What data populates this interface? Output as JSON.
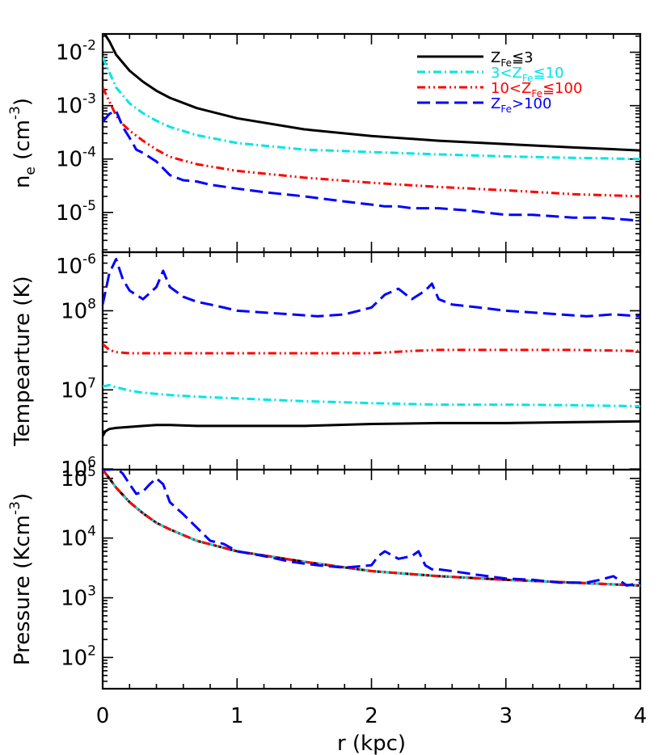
{
  "chart_data": [
    {
      "type": "line",
      "ylabel": "n",
      "ylabel_sub": "e",
      "ylabel_unit": "(cm",
      "ylabel_sup": "-3",
      "ylabel_close": ")",
      "yscale": "log",
      "xlim": [
        0,
        4
      ],
      "ylim": [
        1.8e-06,
        0.022
      ],
      "yticks": [
        {
          "value": 1e-06,
          "base": "10",
          "exp": "-6"
        },
        {
          "value": 1e-05,
          "base": "10",
          "exp": "-5"
        },
        {
          "value": 0.0001,
          "base": "10",
          "exp": "-4"
        },
        {
          "value": 0.001,
          "base": "10",
          "exp": "-3"
        },
        {
          "value": 0.01,
          "base": "10",
          "exp": "-2"
        }
      ],
      "legend_position": "top-right",
      "legend": [
        {
          "pre": "Z",
          "sub": "Fe",
          "post": "≦3",
          "color": "#000000",
          "dash": "solid"
        },
        {
          "pre": "3<Z",
          "sub": "Fe",
          "post": "≦10",
          "color": "#00e5e5",
          "dash": "dashdot"
        },
        {
          "pre": "10<Z",
          "sub": "Fe",
          "post": "≦100",
          "color": "#ff0000",
          "dash": "dashdotdot"
        },
        {
          "pre": "Z",
          "sub": "Fe",
          "post": ">100",
          "color": "#0000ff",
          "dash": "dashed"
        }
      ],
      "series": [
        {
          "color": "#000000",
          "dash": "solid",
          "x": [
            0.0,
            0.05,
            0.1,
            0.2,
            0.3,
            0.4,
            0.5,
            0.7,
            1.0,
            1.5,
            2.0,
            2.5,
            3.0,
            3.5,
            4.0
          ],
          "y": [
            0.025,
            0.016,
            0.009,
            0.0045,
            0.0028,
            0.0019,
            0.0014,
            0.0009,
            0.00058,
            0.00036,
            0.00027,
            0.00022,
            0.00019,
            0.000165,
            0.000145
          ]
        },
        {
          "color": "#00e5e5",
          "dash": "dashdot",
          "x": [
            0.0,
            0.05,
            0.1,
            0.2,
            0.3,
            0.4,
            0.5,
            0.7,
            1.0,
            1.5,
            2.0,
            2.5,
            3.0,
            3.5,
            4.0
          ],
          "y": [
            0.008,
            0.0042,
            0.0022,
            0.0011,
            0.00072,
            0.00052,
            0.0004,
            0.00028,
            0.0002,
            0.00015,
            0.000135,
            0.000122,
            0.000112,
            0.000105,
            0.0001
          ]
        },
        {
          "color": "#ff0000",
          "dash": "dashdotdot",
          "x": [
            0.0,
            0.05,
            0.1,
            0.15,
            0.2,
            0.3,
            0.4,
            0.5,
            0.7,
            1.0,
            1.5,
            2.0,
            2.5,
            3.0,
            3.5,
            4.0
          ],
          "y": [
            0.0022,
            0.0012,
            0.00065,
            0.00045,
            0.00034,
            0.00022,
            0.00015,
            0.00011,
            8e-05,
            6e-05,
            4.5e-05,
            3.6e-05,
            3e-05,
            2.6e-05,
            2.2e-05,
            2e-05
          ]
        },
        {
          "color": "#0000ff",
          "dash": "dashed",
          "x": [
            0.0,
            0.05,
            0.1,
            0.15,
            0.2,
            0.25,
            0.3,
            0.4,
            0.5,
            0.6,
            0.7,
            0.8,
            1.0,
            1.2,
            1.5,
            1.8,
            2.0,
            2.1,
            2.2,
            2.3,
            2.4,
            2.5,
            2.7,
            3.0,
            3.2,
            3.5,
            3.7,
            4.0
          ],
          "y": [
            0.0005,
            0.0007,
            0.0008,
            0.0004,
            0.00025,
            0.00015,
            0.00013,
            9e-05,
            5e-05,
            4e-05,
            3.8e-05,
            3.3e-05,
            2.8e-05,
            2.4e-05,
            2e-05,
            1.6e-05,
            1.4e-05,
            1.3e-05,
            1.3e-05,
            1.2e-05,
            1.2e-05,
            1.2e-05,
            1.1e-05,
            9e-06,
            9e-06,
            8e-06,
            8e-06,
            7e-06
          ]
        }
      ]
    },
    {
      "type": "line",
      "ylabel": "Tempearture (K)",
      "yscale": "log",
      "xlim": [
        0,
        4
      ],
      "ylim": [
        980000,
        550000000
      ],
      "yticks": [
        {
          "value": 1000000.0,
          "base": "10",
          "exp": "6"
        },
        {
          "value": 10000000.0,
          "base": "10",
          "exp": "7"
        },
        {
          "value": 100000000.0,
          "base": "10",
          "exp": "8"
        }
      ],
      "series": [
        {
          "color": "#000000",
          "dash": "solid",
          "x": [
            0.0,
            0.02,
            0.05,
            0.1,
            0.2,
            0.3,
            0.4,
            0.5,
            0.7,
            1.0,
            1.5,
            2.0,
            2.5,
            3.0,
            3.5,
            4.0
          ],
          "y": [
            2600000,
            3000000,
            3200000,
            3300000,
            3400000,
            3500000,
            3600000,
            3600000,
            3500000,
            3500000,
            3500000,
            3700000,
            3800000,
            3800000,
            3900000,
            4000000
          ]
        },
        {
          "color": "#00e5e5",
          "dash": "dashdot",
          "x": [
            0.0,
            0.05,
            0.1,
            0.2,
            0.3,
            0.5,
            0.7,
            1.0,
            1.5,
            2.0,
            2.5,
            3.0,
            3.5,
            4.0
          ],
          "y": [
            11000000,
            11500000,
            10800000,
            9800000,
            9200000,
            8600000,
            8200000,
            7800000,
            7200000,
            6800000,
            6500000,
            6500000,
            6400000,
            6200000
          ]
        },
        {
          "color": "#ff0000",
          "dash": "dashdotdot",
          "x": [
            0.0,
            0.05,
            0.1,
            0.2,
            0.3,
            0.5,
            0.7,
            1.0,
            1.5,
            2.0,
            2.3,
            2.5,
            3.0,
            3.5,
            4.0
          ],
          "y": [
            38000000,
            32000000,
            30000000,
            29000000,
            29000000,
            29000000,
            29000000,
            29000000,
            29000000,
            29000000,
            31000000,
            32000000,
            32000000,
            32000000,
            31000000
          ]
        },
        {
          "color": "#0000ff",
          "dash": "dashed",
          "x": [
            0.0,
            0.05,
            0.1,
            0.15,
            0.2,
            0.3,
            0.4,
            0.45,
            0.5,
            0.6,
            0.7,
            0.8,
            0.9,
            1.0,
            1.2,
            1.4,
            1.6,
            1.8,
            2.0,
            2.1,
            2.2,
            2.3,
            2.4,
            2.45,
            2.5,
            2.6,
            2.8,
            3.0,
            3.2,
            3.4,
            3.6,
            3.8,
            4.0
          ],
          "y": [
            120000000,
            300000000,
            450000000,
            250000000,
            180000000,
            140000000,
            200000000,
            320000000,
            200000000,
            150000000,
            130000000,
            120000000,
            110000000,
            100000000,
            95000000,
            90000000,
            85000000,
            90000000,
            110000000,
            160000000,
            190000000,
            140000000,
            180000000,
            220000000,
            140000000,
            120000000,
            110000000,
            100000000,
            95000000,
            90000000,
            85000000,
            90000000,
            85000000
          ]
        }
      ]
    },
    {
      "type": "line",
      "ylabel": "Pressure (Kcm",
      "ylabel_sup": "-3",
      "ylabel_close": ")",
      "xlabel": "r (kpc)",
      "yscale": "log",
      "xlim": [
        0,
        4
      ],
      "ylim": [
        30,
        140000
      ],
      "xticks": [
        "0",
        "1",
        "2",
        "3",
        "4"
      ],
      "yticks": [
        {
          "value": 100,
          "base": "10",
          "exp": "2"
        },
        {
          "value": 1000,
          "base": "10",
          "exp": "3"
        },
        {
          "value": 10000,
          "base": "10",
          "exp": "4"
        },
        {
          "value": 100000,
          "base": "10",
          "exp": "5"
        }
      ],
      "series": [
        {
          "color": "#000000",
          "dash": "solid",
          "x": [
            0.0,
            0.05,
            0.1,
            0.2,
            0.3,
            0.4,
            0.5,
            0.7,
            1.0,
            1.5,
            2.0,
            2.5,
            3.0,
            3.5,
            4.0
          ],
          "y": [
            140000,
            100000,
            70000,
            40000,
            26000,
            18000,
            14000,
            9000,
            6000,
            4000,
            2800,
            2300,
            2000,
            1800,
            1600
          ]
        },
        {
          "color": "#00e5e5",
          "dash": "dashdot",
          "x": [
            0.0,
            0.05,
            0.1,
            0.2,
            0.3,
            0.4,
            0.5,
            0.7,
            1.0,
            1.5,
            2.0,
            2.5,
            3.0,
            3.5,
            4.0
          ],
          "y": [
            140000,
            100000,
            70000,
            40000,
            26000,
            18000,
            14000,
            9000,
            6000,
            4000,
            2800,
            2300,
            2000,
            1800,
            1600
          ]
        },
        {
          "color": "#ff0000",
          "dash": "dashdotdot",
          "x": [
            0.0,
            0.05,
            0.1,
            0.2,
            0.3,
            0.4,
            0.5,
            0.7,
            1.0,
            1.5,
            2.0,
            2.5,
            3.0,
            3.5,
            4.0
          ],
          "y": [
            140000,
            100000,
            70000,
            40000,
            26000,
            18000,
            14000,
            9000,
            6000,
            4000,
            2800,
            2300,
            2000,
            1800,
            1600
          ]
        },
        {
          "color": "#0000ff",
          "dash": "dashed",
          "x": [
            0.0,
            0.05,
            0.1,
            0.15,
            0.2,
            0.25,
            0.3,
            0.35,
            0.4,
            0.45,
            0.5,
            0.6,
            0.7,
            0.8,
            0.9,
            1.0,
            1.2,
            1.4,
            1.6,
            1.8,
            2.0,
            2.05,
            2.1,
            2.2,
            2.3,
            2.35,
            2.4,
            2.45,
            2.5,
            2.6,
            2.8,
            3.0,
            3.2,
            3.4,
            3.6,
            3.7,
            3.8,
            3.9,
            4.0
          ],
          "y": [
            140000,
            140000,
            150000,
            120000,
            80000,
            55000,
            60000,
            80000,
            100000,
            80000,
            40000,
            25000,
            15000,
            9000,
            8000,
            6000,
            5000,
            4000,
            3500,
            3200,
            3500,
            5000,
            6000,
            4500,
            5000,
            6000,
            3500,
            3000,
            3000,
            2800,
            2400,
            2100,
            2000,
            1800,
            1800,
            2000,
            2300,
            1600,
            1800
          ]
        }
      ]
    }
  ]
}
